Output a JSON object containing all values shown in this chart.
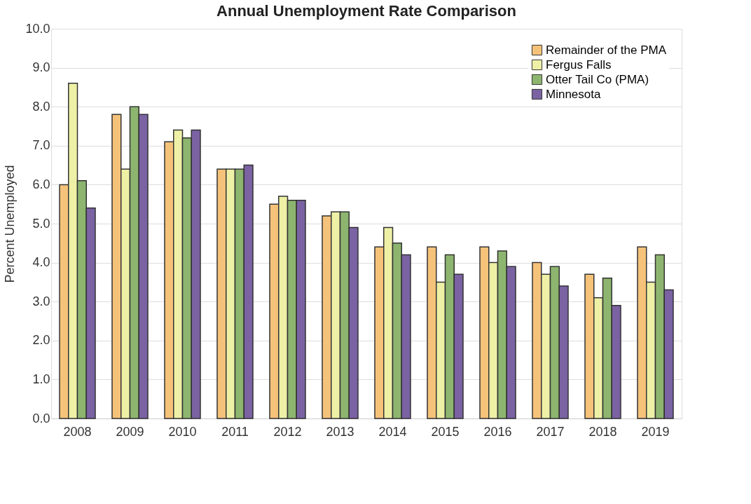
{
  "chart_data": {
    "type": "bar",
    "title": "Annual Unemployment Rate Comparison",
    "ylabel": "Percent Unemployed",
    "categories": [
      "2008",
      "2009",
      "2010",
      "2011",
      "2012",
      "2013",
      "2014",
      "2015",
      "2016",
      "2017",
      "2018",
      "2019"
    ],
    "series": [
      {
        "name": "Remainder of the PMA",
        "color": "#f5c27a",
        "values": [
          6.0,
          7.8,
          7.1,
          6.4,
          5.5,
          5.2,
          4.4,
          4.4,
          4.4,
          4.0,
          3.7,
          4.4
        ]
      },
      {
        "name": "Fergus Falls",
        "color": "#eef0a6",
        "values": [
          8.6,
          6.4,
          7.4,
          6.4,
          5.7,
          5.3,
          4.9,
          3.5,
          4.0,
          3.7,
          3.1,
          3.5
        ]
      },
      {
        "name": "Otter Tail Co (PMA)",
        "color": "#8db56f",
        "values": [
          6.1,
          8.0,
          7.2,
          6.4,
          5.6,
          5.3,
          4.5,
          4.2,
          4.3,
          3.9,
          3.6,
          4.2
        ]
      },
      {
        "name": "Minnesota",
        "color": "#7a62a3",
        "values": [
          5.4,
          7.8,
          7.4,
          6.5,
          5.6,
          4.9,
          4.2,
          3.7,
          3.9,
          3.4,
          2.9,
          3.3
        ]
      }
    ],
    "ylim": [
      0,
      10
    ],
    "yticks": [
      {
        "value": 0,
        "label": "0.0"
      },
      {
        "value": 1,
        "label": "1.0"
      },
      {
        "value": 2,
        "label": "2.0"
      },
      {
        "value": 3,
        "label": "3.0"
      },
      {
        "value": 4,
        "label": "4.0"
      },
      {
        "value": 5,
        "label": "5.0"
      },
      {
        "value": 6,
        "label": "6.0"
      },
      {
        "value": 7,
        "label": "7.0"
      },
      {
        "value": 8,
        "label": "8.0"
      },
      {
        "value": 9,
        "label": "9.0"
      },
      {
        "value": 10,
        "label": "10.0"
      }
    ],
    "grid": "y",
    "legend": "top right"
  }
}
